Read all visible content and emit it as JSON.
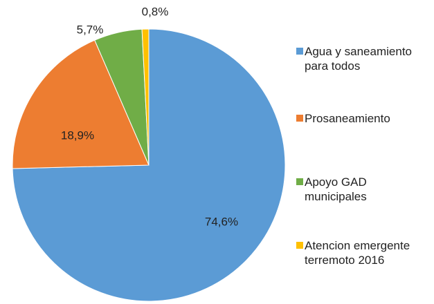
{
  "chart_data": {
    "type": "pie",
    "categories": [
      "Agua y saneamiento para todos",
      "Prosaneamiento",
      "Apoyo GAD municipales",
      "Atencion emergente terremoto 2016"
    ],
    "values": [
      74.6,
      18.9,
      5.7,
      0.8
    ],
    "value_labels": [
      "74,6%",
      "18,9%",
      "5,7%",
      "0,8%"
    ],
    "colors": [
      "#5b9bd5",
      "#ed7d31",
      "#70ad47",
      "#ffc000"
    ],
    "legend": "right"
  }
}
